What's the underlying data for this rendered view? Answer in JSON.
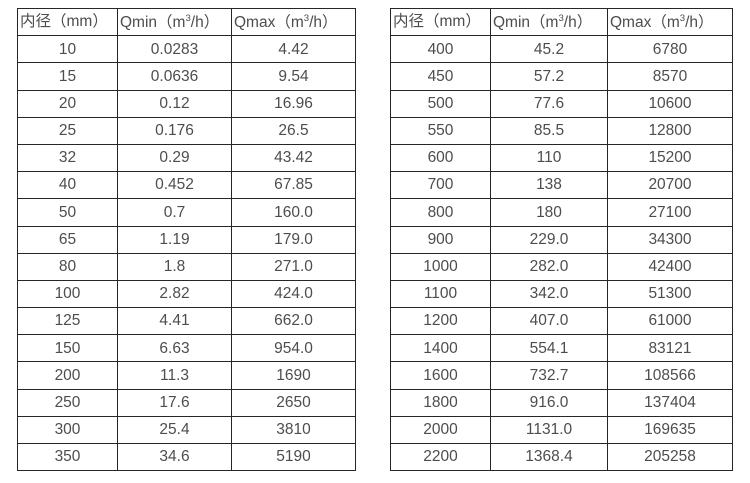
{
  "page": {
    "background_color": "#ffffff",
    "text_color": "#4d4d4d",
    "border_color": "#262626"
  },
  "tables": [
    {
      "name": "diameter-flow-table-left",
      "headers": [
        "内径（mm）",
        "Qmin（m³/h）",
        "Qmax（m³/h）"
      ],
      "rows": [
        [
          "10",
          "0.0283",
          "4.42"
        ],
        [
          "15",
          "0.0636",
          "9.54"
        ],
        [
          "20",
          "0.12",
          "16.96"
        ],
        [
          "25",
          "0.176",
          "26.5"
        ],
        [
          "32",
          "0.29",
          "43.42"
        ],
        [
          "40",
          "0.452",
          "67.85"
        ],
        [
          "50",
          "0.7",
          "160.0"
        ],
        [
          "65",
          "1.19",
          "179.0"
        ],
        [
          "80",
          "1.8",
          "271.0"
        ],
        [
          "100",
          "2.82",
          "424.0"
        ],
        [
          "125",
          "4.41",
          "662.0"
        ],
        [
          "150",
          "6.63",
          "954.0"
        ],
        [
          "200",
          "11.3",
          "1690"
        ],
        [
          "250",
          "17.6",
          "2650"
        ],
        [
          "300",
          "25.4",
          "3810"
        ],
        [
          "350",
          "34.6",
          "5190"
        ]
      ]
    },
    {
      "name": "diameter-flow-table-right",
      "headers": [
        "内径（mm）",
        "Qmin（m³/h）",
        "Qmax（m³/h）"
      ],
      "rows": [
        [
          "400",
          "45.2",
          "6780"
        ],
        [
          "450",
          "57.2",
          "8570"
        ],
        [
          "500",
          "77.6",
          "10600"
        ],
        [
          "550",
          "85.5",
          "12800"
        ],
        [
          "600",
          "110",
          "15200"
        ],
        [
          "700",
          "138",
          "20700"
        ],
        [
          "800",
          "180",
          "27100"
        ],
        [
          "900",
          "229.0",
          "34300"
        ],
        [
          "1000",
          "282.0",
          "42400"
        ],
        [
          "1100",
          "342.0",
          "51300"
        ],
        [
          "1200",
          "407.0",
          "61000"
        ],
        [
          "1400",
          "554.1",
          "83121"
        ],
        [
          "1600",
          "732.7",
          "108566"
        ],
        [
          "1800",
          "916.0",
          "137404"
        ],
        [
          "2000",
          "1131.0",
          "169635"
        ],
        [
          "2200",
          "1368.4",
          "205258"
        ]
      ]
    }
  ],
  "layout": {
    "left_table_col_widths": [
      100,
      114,
      124
    ],
    "right_table_col_widths": [
      100,
      117,
      125
    ]
  }
}
